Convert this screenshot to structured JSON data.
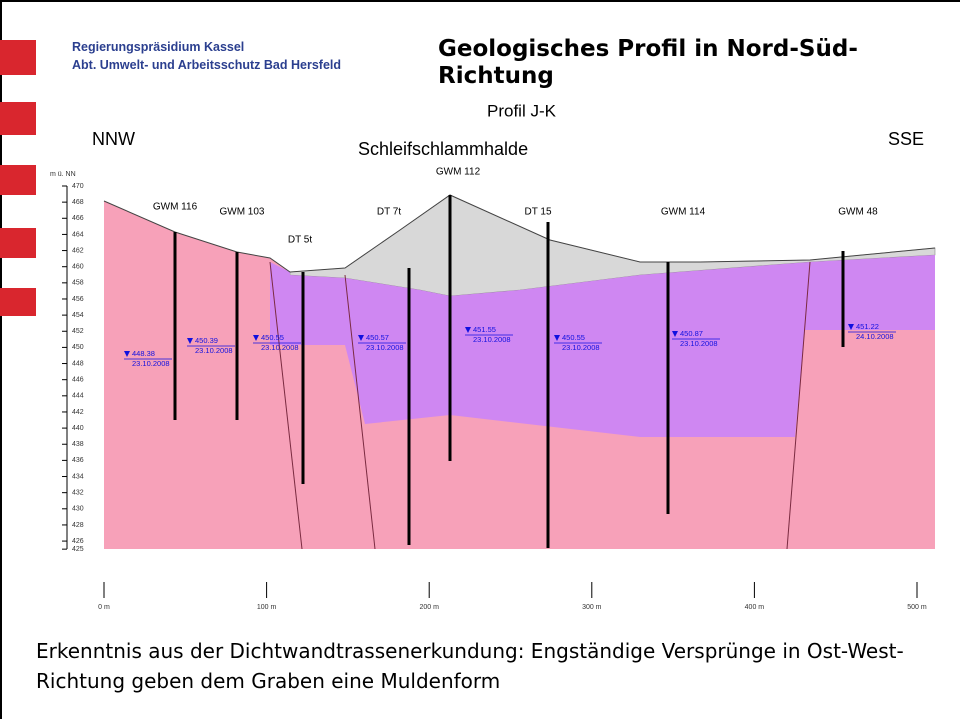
{
  "header": {
    "org": "Regierungspräsidium Kassel",
    "dept": "Abt. Umwelt- und Arbeitsschutz Bad Hersfeld",
    "title": "Geologisches Profil in Nord-Süd-Richtung",
    "subtitle": "Profil J-K"
  },
  "profile": {
    "left": "NNW",
    "right": "SSE",
    "feature": "Schleifschlammhalde",
    "y_unit": "m ü. NN",
    "yticks": [
      470,
      468,
      466,
      464,
      462,
      460,
      458,
      456,
      454,
      452,
      450,
      448,
      446,
      444,
      442,
      440,
      438,
      436,
      434,
      432,
      430,
      428,
      426,
      425
    ],
    "xticks": [
      "0 m",
      "100 m",
      "200 m",
      "300 m",
      "400 m",
      "500 m"
    ],
    "wells": [
      {
        "label": "GWM 116"
      },
      {
        "label": "GWM 103"
      },
      {
        "label": "DT 5t"
      },
      {
        "label": "DT 7t"
      },
      {
        "label": "GWM 112"
      },
      {
        "label": "DT 15"
      },
      {
        "label": "GWM 114"
      },
      {
        "label": "GWM 48"
      }
    ],
    "water_levels": [
      {
        "level": 448.38,
        "date": "23.10.2008"
      },
      {
        "level": 450.39,
        "date": "23.10.2008"
      },
      {
        "level": 450.55,
        "date": "23.10.2008"
      },
      {
        "level": 450.57,
        "date": "23.10.2008"
      },
      {
        "level": 451.55,
        "date": "23.10.2008"
      },
      {
        "level": 450.55,
        "date": "23.10.2008"
      },
      {
        "level": 450.87,
        "date": "23.10.2008"
      },
      {
        "level": 451.22,
        "date": "24.10.2008"
      }
    ]
  },
  "caption": "Erkenntnis aus der Dichtwandtrassenerkundung: Engständige Versprünge in Ost-West-Richtung geben dem Graben eine Muldenform"
}
